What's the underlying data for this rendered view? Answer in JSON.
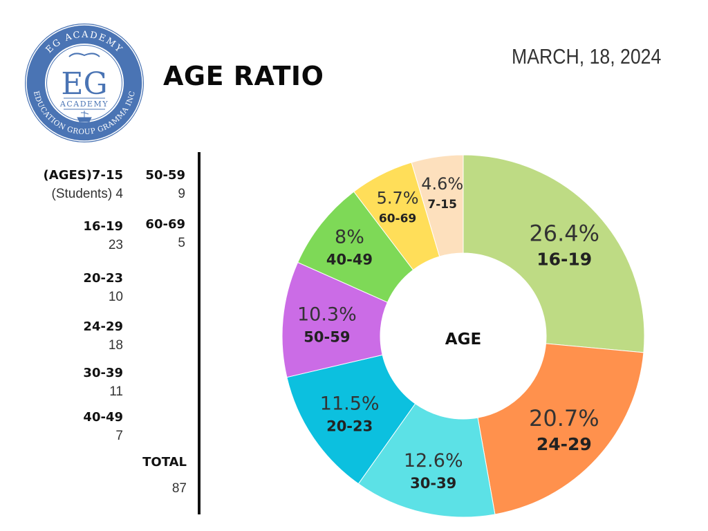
{
  "header": {
    "title": "AGE RATIO",
    "date": "MARCH, 18, 2024"
  },
  "logo": {
    "top_text": "EG ACADEMY",
    "monogram": "EG",
    "subtext": "ACADEMY",
    "bottom_text": "EDUCATION GROUP GRAMMA INC"
  },
  "table": {
    "entries": [
      {
        "label": "(AGES)7-15",
        "value": "(Students) 4"
      },
      {
        "label": "16-19",
        "value": "23"
      },
      {
        "label": "20-23",
        "value": "10"
      },
      {
        "label": "24-29",
        "value": "18"
      },
      {
        "label": "30-39",
        "value": "11"
      },
      {
        "label": "40-49",
        "value": "7"
      },
      {
        "label": "50-59",
        "value": "9"
      },
      {
        "label": "60-69",
        "value": "5"
      }
    ],
    "total_label": "TOTAL",
    "total_value": "87"
  },
  "chart_data": {
    "type": "pie",
    "variant": "donut",
    "center_label": "AGE",
    "categories": [
      "16-19",
      "24-29",
      "30-39",
      "20-23",
      "50-59",
      "40-49",
      "60-69",
      "7-15"
    ],
    "values": [
      26.4,
      20.7,
      12.6,
      11.5,
      10.3,
      8,
      5.7,
      4.6
    ],
    "value_labels": [
      "26.4%",
      "20.7%",
      "12.6%",
      "11.5%",
      "10.3%",
      "8%",
      "5.7%",
      "4.6%"
    ],
    "colors": [
      "#bedb84",
      "#ff914d",
      "#5ce1e6",
      "#0cc0df",
      "#cb6ce6",
      "#7ed957",
      "#ffde59",
      "#fde0bd"
    ],
    "start": "12 o'clock",
    "direction": "clockwise"
  }
}
